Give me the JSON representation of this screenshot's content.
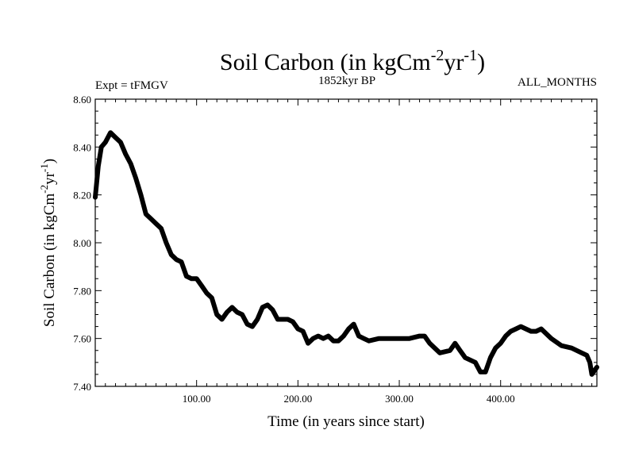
{
  "chart_data": {
    "type": "line",
    "title_main": "Soil Carbon (in kgCm",
    "title_sup1": "-2",
    "title_mid": "yr",
    "title_sup2": "-1",
    "title_end": ")",
    "left_label": "Expt = tFMGV",
    "center_label": "1852kyr BP",
    "right_label": "ALL_MONTHS",
    "xlabel": "Time (in years since start)",
    "ylabel_main": "Soil Carbon (in kgCm",
    "ylabel_sup1": "-2",
    "ylabel_mid": "yr",
    "ylabel_sup2": "-1",
    "ylabel_end": ")",
    "xlim": [
      0,
      495
    ],
    "ylim": [
      7.4,
      8.6
    ],
    "x_ticks": [
      100,
      200,
      300,
      400
    ],
    "x_tick_labels": [
      "100.00",
      "200.00",
      "300.00",
      "400.00"
    ],
    "y_ticks": [
      7.4,
      7.6,
      7.8,
      8.0,
      8.2,
      8.4,
      8.6
    ],
    "y_tick_labels": [
      "7.40",
      "7.60",
      "7.80",
      "8.00",
      "8.20",
      "8.40",
      "8.60"
    ],
    "line_color": "#000000",
    "series": [
      {
        "name": "Soil Carbon",
        "x": [
          0,
          3,
          6,
          10,
          15,
          20,
          25,
          30,
          35,
          40,
          45,
          50,
          55,
          60,
          65,
          70,
          75,
          80,
          85,
          90,
          95,
          100,
          105,
          110,
          115,
          120,
          125,
          130,
          135,
          140,
          145,
          150,
          155,
          160,
          165,
          170,
          175,
          180,
          185,
          190,
          195,
          200,
          205,
          210,
          215,
          220,
          225,
          230,
          235,
          240,
          245,
          250,
          255,
          260,
          265,
          270,
          280,
          290,
          300,
          310,
          320,
          325,
          330,
          340,
          350,
          355,
          360,
          365,
          370,
          375,
          380,
          385,
          390,
          395,
          400,
          405,
          410,
          415,
          420,
          425,
          430,
          435,
          440,
          450,
          460,
          470,
          480,
          485,
          488,
          490,
          495
        ],
        "y": [
          8.19,
          8.32,
          8.4,
          8.42,
          8.46,
          8.44,
          8.42,
          8.37,
          8.33,
          8.27,
          8.2,
          8.12,
          8.1,
          8.08,
          8.06,
          8.0,
          7.95,
          7.93,
          7.92,
          7.86,
          7.85,
          7.85,
          7.82,
          7.79,
          7.77,
          7.7,
          7.68,
          7.71,
          7.73,
          7.71,
          7.7,
          7.66,
          7.65,
          7.68,
          7.73,
          7.74,
          7.72,
          7.68,
          7.68,
          7.68,
          7.67,
          7.64,
          7.63,
          7.58,
          7.6,
          7.61,
          7.6,
          7.61,
          7.59,
          7.59,
          7.61,
          7.64,
          7.66,
          7.61,
          7.6,
          7.59,
          7.6,
          7.6,
          7.6,
          7.6,
          7.61,
          7.61,
          7.58,
          7.54,
          7.55,
          7.58,
          7.55,
          7.52,
          7.51,
          7.5,
          7.46,
          7.46,
          7.52,
          7.56,
          7.58,
          7.61,
          7.63,
          7.64,
          7.65,
          7.64,
          7.63,
          7.63,
          7.64,
          7.6,
          7.57,
          7.56,
          7.54,
          7.53,
          7.5,
          7.45,
          7.48
        ]
      }
    ]
  }
}
